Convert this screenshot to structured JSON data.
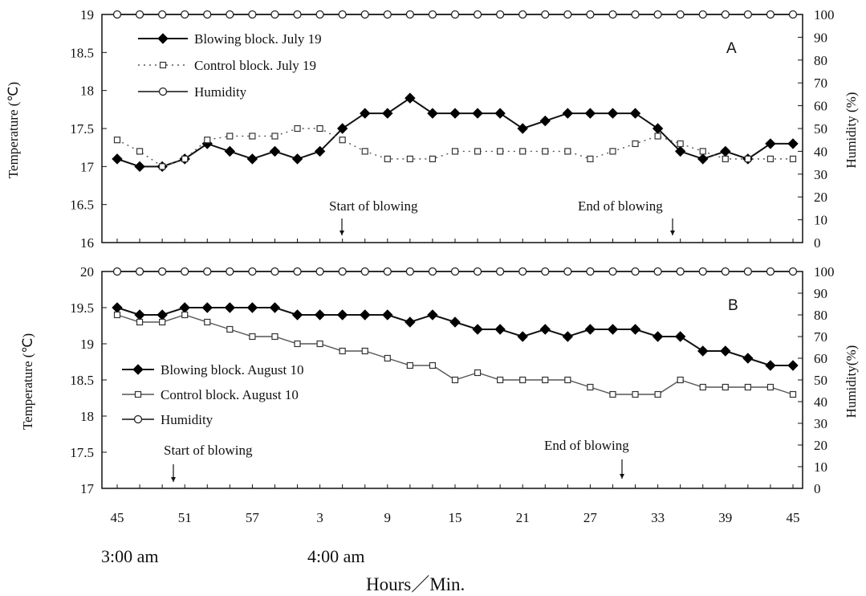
{
  "x_tick_labels": [
    "45",
    "51",
    "57",
    "3",
    "9",
    "15",
    "21",
    "27",
    "33",
    "39",
    "45"
  ],
  "hour_labels": [
    "3:00  am",
    "4:00  am"
  ],
  "x_axis_title": "Hours／Min.",
  "chart_data": [
    {
      "type": "line",
      "panel_label": "A",
      "ylabel": "Temperature (℃)",
      "ylabel2": "Humidity (%)",
      "ylim": [
        16,
        19
      ],
      "y2lim": [
        0,
        100
      ],
      "yticks": [
        "16",
        "16.5",
        "17",
        "17.5",
        "18",
        "18.5",
        "19"
      ],
      "y2ticks": [
        "0",
        "10",
        "20",
        "30",
        "40",
        "50",
        "60",
        "70",
        "80",
        "90",
        "100"
      ],
      "x_minutes": [
        "45",
        "47",
        "49",
        "51",
        "53",
        "55",
        "57",
        "59",
        "1",
        "3",
        "5",
        "7",
        "9",
        "11",
        "13",
        "15",
        "17",
        "19",
        "21",
        "23",
        "25",
        "27",
        "29",
        "31",
        "33",
        "35",
        "37",
        "39",
        "41",
        "43",
        "45"
      ],
      "series": [
        {
          "name": "Blowing block. July 19",
          "axis": "left",
          "marker": "diamond",
          "line": "solid",
          "values": [
            17.1,
            17.0,
            17.0,
            17.1,
            17.3,
            17.2,
            17.1,
            17.2,
            17.1,
            17.2,
            17.5,
            17.7,
            17.7,
            17.9,
            17.7,
            17.7,
            17.7,
            17.7,
            17.5,
            17.6,
            17.7,
            17.7,
            17.7,
            17.7,
            17.5,
            17.2,
            17.1,
            17.2,
            17.1,
            17.3,
            17.3
          ]
        },
        {
          "name": "Control block. July 19",
          "axis": "left",
          "marker": "square",
          "line": "dotted",
          "values": [
            17.35,
            17.2,
            17.0,
            17.1,
            17.35,
            17.4,
            17.4,
            17.4,
            17.5,
            17.5,
            17.35,
            17.2,
            17.1,
            17.1,
            17.1,
            17.2,
            17.2,
            17.2,
            17.2,
            17.2,
            17.2,
            17.1,
            17.2,
            17.3,
            17.4,
            17.3,
            17.2,
            17.1,
            17.1,
            17.1,
            17.1
          ]
        },
        {
          "name": "Humidity",
          "axis": "right",
          "marker": "circle",
          "line": "solid",
          "values": [
            100,
            100,
            100,
            100,
            100,
            100,
            100,
            100,
            100,
            100,
            100,
            100,
            100,
            100,
            100,
            100,
            100,
            100,
            100,
            100,
            100,
            100,
            100,
            100,
            100,
            100,
            100,
            100,
            100,
            100,
            100
          ]
        }
      ],
      "annotations": [
        {
          "text": "Start of blowing",
          "arrow_after_min": "5"
        },
        {
          "text": "End of blowing",
          "arrow_after_min": "35"
        }
      ],
      "legend_position": "top-left",
      "grid": false
    },
    {
      "type": "line",
      "panel_label": "B",
      "ylabel": "Temperature (℃)",
      "ylabel2": "Humidity(%)",
      "ylim": [
        17,
        20
      ],
      "y2lim": [
        0,
        100
      ],
      "yticks": [
        "17",
        "17.5",
        "18",
        "18.5",
        "19",
        "19.5",
        "20"
      ],
      "y2ticks": [
        "0",
        "10",
        "20",
        "30",
        "40",
        "50",
        "60",
        "70",
        "80",
        "90",
        "100"
      ],
      "x_minutes": [
        "45",
        "47",
        "49",
        "51",
        "53",
        "55",
        "57",
        "59",
        "1",
        "3",
        "5",
        "7",
        "9",
        "11",
        "13",
        "15",
        "17",
        "19",
        "21",
        "23",
        "25",
        "27",
        "29",
        "31",
        "33",
        "35",
        "37",
        "39",
        "41",
        "43",
        "45"
      ],
      "series": [
        {
          "name": "Blowing block. August 10",
          "axis": "left",
          "marker": "diamond",
          "line": "solid",
          "values": [
            19.5,
            19.4,
            19.4,
            19.5,
            19.5,
            19.5,
            19.5,
            19.5,
            19.4,
            19.4,
            19.4,
            19.4,
            19.4,
            19.3,
            19.4,
            19.3,
            19.2,
            19.2,
            19.1,
            19.2,
            19.1,
            19.2,
            19.2,
            19.2,
            19.1,
            19.1,
            18.9,
            18.9,
            18.8,
            18.7,
            18.7
          ]
        },
        {
          "name": "Control block. August 10",
          "axis": "left",
          "marker": "square",
          "line": "solid",
          "values": [
            19.4,
            19.3,
            19.3,
            19.4,
            19.3,
            19.2,
            19.1,
            19.1,
            19.0,
            19.0,
            18.9,
            18.9,
            18.8,
            18.7,
            18.7,
            18.5,
            18.6,
            18.5,
            18.5,
            18.5,
            18.5,
            18.4,
            18.3,
            18.3,
            18.3,
            18.5,
            18.4,
            18.4,
            18.4,
            18.4,
            18.3
          ]
        },
        {
          "name": "Humidity",
          "axis": "right",
          "marker": "circle",
          "line": "solid",
          "values": [
            100,
            100,
            100,
            100,
            100,
            100,
            100,
            100,
            100,
            100,
            100,
            100,
            100,
            100,
            100,
            100,
            100,
            100,
            100,
            100,
            100,
            100,
            100,
            100,
            100,
            100,
            100,
            100,
            100,
            100,
            100
          ]
        }
      ],
      "annotations": [
        {
          "text": "Start of blowing",
          "arrow_after_min": "50"
        },
        {
          "text": "End of blowing",
          "arrow_after_min": "30"
        }
      ],
      "legend_position": "middle-left",
      "grid": false
    }
  ]
}
